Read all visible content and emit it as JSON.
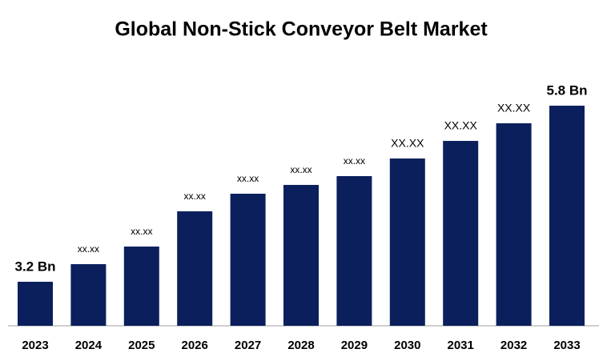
{
  "chart_data": {
    "type": "bar",
    "title": "Global Non-Stick Conveyor Belt Market",
    "categories": [
      "2023",
      "2024",
      "2025",
      "2026",
      "2027",
      "2028",
      "2029",
      "2030",
      "2031",
      "2032",
      "2033"
    ],
    "values": [
      3.2,
      3.46,
      3.72,
      4.24,
      4.5,
      4.63,
      4.76,
      5.02,
      5.28,
      5.54,
      5.8
    ],
    "value_labels": [
      "3.2 Bn",
      "xx.xx",
      "xx.xx",
      "xx.xx",
      "xx.xx",
      "xx.xx",
      "xx.xx",
      "XX.XX",
      "XX.XX",
      "XX.XX",
      "5.8 Bn"
    ],
    "color": "#0b1f5c",
    "ylim": [
      2.55,
      6.2
    ]
  }
}
